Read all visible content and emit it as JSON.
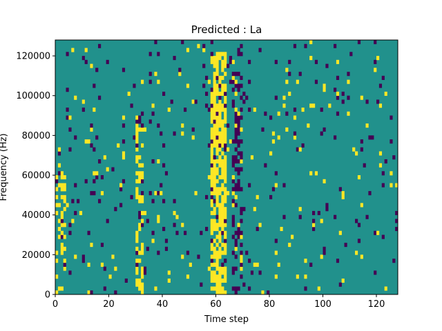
{
  "chart_data": {
    "type": "heatmap",
    "title": "Predicted : La",
    "xlabel": "Time step",
    "ylabel": "Frequency (Hz)",
    "xlim": [
      0,
      128
    ],
    "ylim": [
      0,
      128000
    ],
    "x_ticks": [
      0,
      20,
      40,
      60,
      80,
      100,
      120
    ],
    "y_ticks": [
      0,
      20000,
      40000,
      60000,
      80000,
      100000,
      120000
    ],
    "rows": 64,
    "cols": 128,
    "colors": {
      "low": "#440154",
      "mid": "#21918c",
      "high": "#fde725"
    },
    "legend": "none",
    "grid": false
  }
}
